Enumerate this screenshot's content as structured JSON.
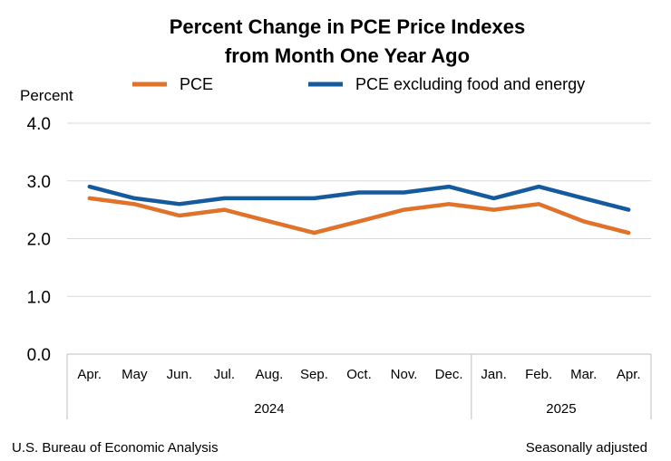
{
  "chart_data": {
    "type": "line",
    "title": [
      "Percent Change in PCE Price Indexes",
      "from Month One Year Ago"
    ],
    "ylabel": "Percent",
    "ylim": [
      0,
      4
    ],
    "yticks": [
      "0.0",
      "1.0",
      "2.0",
      "3.0",
      "4.0"
    ],
    "ytick_values": [
      0,
      1,
      2,
      3,
      4
    ],
    "categories": [
      "Apr.",
      "May",
      "Jun.",
      "Jul.",
      "Aug.",
      "Sep.",
      "Oct.",
      "Nov.",
      "Dec.",
      "Jan.",
      "Feb.",
      "Mar.",
      "Apr."
    ],
    "year_groups": [
      {
        "label": "2024",
        "count": 9
      },
      {
        "label": "2025",
        "count": 4
      }
    ],
    "series": [
      {
        "name": "PCE",
        "color": "#E0722A",
        "values": [
          2.7,
          2.6,
          2.4,
          2.5,
          2.3,
          2.1,
          2.3,
          2.5,
          2.6,
          2.5,
          2.6,
          2.3,
          2.1
        ]
      },
      {
        "name": "PCE excluding food and energy",
        "color": "#165A9E",
        "values": [
          2.9,
          2.7,
          2.6,
          2.7,
          2.7,
          2.7,
          2.8,
          2.8,
          2.9,
          2.7,
          2.9,
          2.7,
          2.5
        ]
      }
    ],
    "legend_position": "top",
    "grid": true
  },
  "footer": {
    "source": "U.S. Bureau of Economic Analysis",
    "note": "Seasonally adjusted"
  }
}
